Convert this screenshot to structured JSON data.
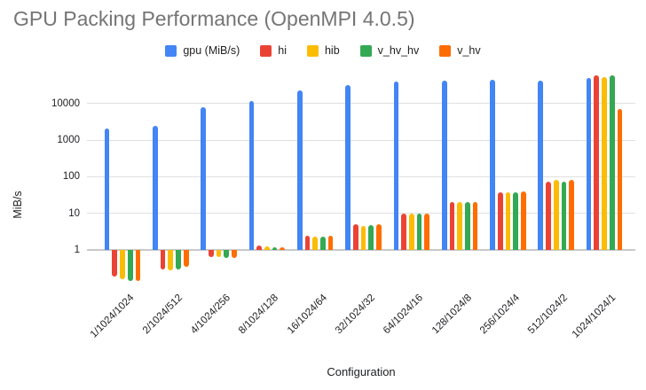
{
  "chart_data": {
    "type": "bar",
    "title": "GPU Packing Performance (OpenMPI 4.0.5)",
    "xlabel": "Configuration",
    "ylabel": "MiB/s",
    "y_scale": "log10",
    "ylim": [
      0.1,
      100000
    ],
    "yticks": [
      10000,
      1000,
      100,
      10,
      1
    ],
    "grid": "horizontal",
    "legend_position": "top-center",
    "categories": [
      "1/1024/1024",
      "2/1024/512",
      "4/1024/256",
      "8/1024/128",
      "16/1024/64",
      "32/1024/32",
      "64/1024/16",
      "128/1024/8",
      "256/1024/4",
      "512/1024/2",
      "1024/1024/1"
    ],
    "series": [
      {
        "name": "gpu (MiB/s)",
        "color": "#4285F4",
        "values": [
          2100,
          2500,
          8000,
          12000,
          23000,
          32000,
          40000,
          42000,
          44000,
          42000,
          50000
        ]
      },
      {
        "name": "hi",
        "color": "#EA4335",
        "values": [
          0.19,
          0.29,
          0.65,
          1.3,
          2.4,
          5.0,
          10,
          20,
          38,
          75,
          58000
        ]
      },
      {
        "name": "hib",
        "color": "#FBBC04",
        "values": [
          0.16,
          0.28,
          0.65,
          1.25,
          2.3,
          4.6,
          10,
          20,
          38,
          80,
          53000
        ]
      },
      {
        "name": "v_hv_hv",
        "color": "#34A853",
        "values": [
          0.14,
          0.29,
          0.6,
          1.2,
          2.3,
          4.8,
          10,
          20,
          38,
          75,
          58000
        ]
      },
      {
        "name": "v_hv",
        "color": "#FF6D01",
        "values": [
          0.14,
          0.35,
          0.6,
          1.2,
          2.5,
          5.0,
          10,
          20,
          40,
          80,
          7000
        ]
      }
    ]
  }
}
